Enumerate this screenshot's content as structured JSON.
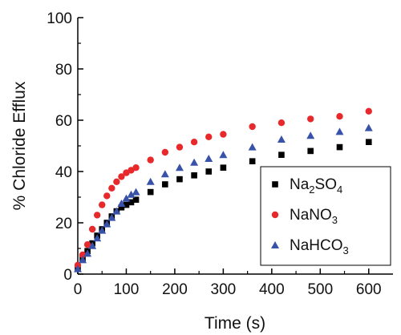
{
  "chart_data": {
    "type": "scatter",
    "xlabel": "Time (s)",
    "ylabel": "% Chloride Efflux",
    "xlim": [
      0,
      650
    ],
    "ylim": [
      0,
      100
    ],
    "x_ticks": [
      0,
      100,
      200,
      300,
      400,
      500,
      600
    ],
    "y_ticks": [
      0,
      20,
      40,
      60,
      80,
      100
    ],
    "grid": false,
    "legend_position": "bottom-right",
    "x": [
      0,
      10,
      20,
      30,
      40,
      50,
      60,
      70,
      80,
      90,
      100,
      110,
      120,
      150,
      180,
      210,
      240,
      270,
      300,
      360,
      420,
      480,
      540,
      600
    ],
    "series": [
      {
        "name": "Na2SO4",
        "legend": {
          "main": "Na",
          "sub1": "2",
          "mid": "SO",
          "sub2": "4"
        },
        "marker": "square",
        "color": "#000000",
        "values": [
          2.5,
          6,
          9,
          12,
          15,
          17.5,
          20,
          22.5,
          24.5,
          26,
          27,
          28,
          29,
          32,
          35,
          37,
          38.5,
          40,
          41.5,
          44,
          46.5,
          48,
          49.5,
          51.5
        ]
      },
      {
        "name": "NaNO3",
        "legend": {
          "main": "NaNO",
          "sub1": "3",
          "mid": "",
          "sub2": ""
        },
        "marker": "circle",
        "color": "#e8292b",
        "values": [
          3.5,
          7.5,
          11.5,
          17.5,
          23,
          27,
          30.5,
          33.5,
          36,
          38,
          39.5,
          40.5,
          41.5,
          44.5,
          47.5,
          49.5,
          51.5,
          53.5,
          54.5,
          57.5,
          59,
          60.5,
          61.5,
          63.5
        ]
      },
      {
        "name": "NaHCO3",
        "legend": {
          "main": "NaHCO",
          "sub1": "3",
          "mid": "",
          "sub2": ""
        },
        "marker": "triangle",
        "color": "#3752a8",
        "values": [
          2,
          5.5,
          8,
          11,
          14,
          17,
          19.5,
          22,
          24.5,
          27.5,
          29.5,
          31,
          32,
          36,
          39,
          41.5,
          43.5,
          45,
          46.5,
          49.5,
          52.5,
          54,
          55.5,
          57
        ]
      }
    ]
  }
}
